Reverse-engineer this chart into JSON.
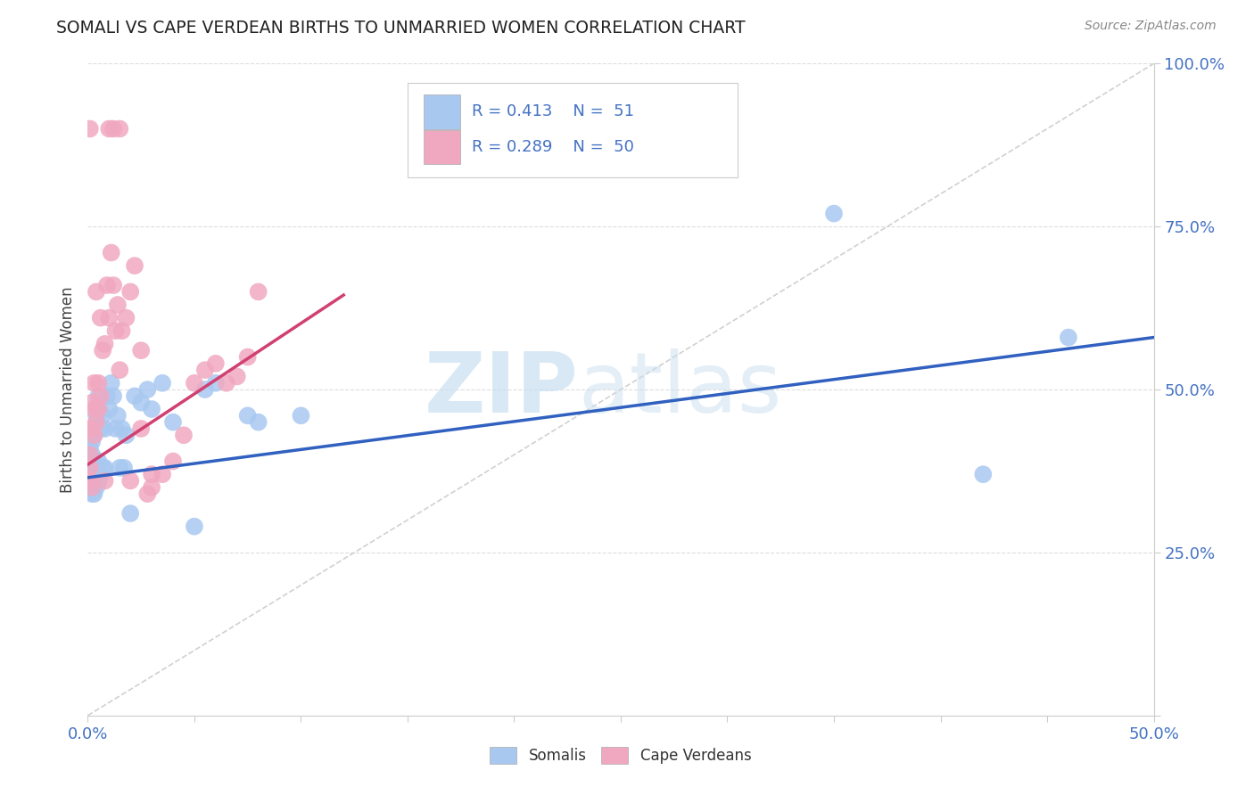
{
  "title": "SOMALI VS CAPE VERDEAN BIRTHS TO UNMARRIED WOMEN CORRELATION CHART",
  "source": "Source: ZipAtlas.com",
  "ylabel": "Births to Unmarried Women",
  "xlim": [
    0.0,
    0.5
  ],
  "ylim": [
    0.0,
    1.0
  ],
  "somali_color": "#a8c8f0",
  "cape_verdean_color": "#f0a8c0",
  "somali_line_color": "#3060c0",
  "cape_verdean_line_color": "#d04070",
  "ref_line_color": "#cccccc",
  "watermark_zip_color": "#c8dff0",
  "watermark_atlas_color": "#c8dff0",
  "legend_R_somali": "0.413",
  "legend_N_somali": "51",
  "legend_R_cape": "0.289",
  "legend_N_cape": "50",
  "somali_line_x0": 0.0,
  "somali_line_y0": 0.365,
  "somali_line_x1": 0.5,
  "somali_line_y1": 0.58,
  "cape_line_x0": 0.0,
  "cape_line_y0": 0.385,
  "cape_line_x1": 0.12,
  "cape_line_y1": 0.645,
  "background_color": "#ffffff",
  "grid_color": "#dddddd",
  "tick_label_color": "#4472c4",
  "somali_x": [
    0.001,
    0.001,
    0.001,
    0.001,
    0.002,
    0.002,
    0.002,
    0.002,
    0.002,
    0.003,
    0.003,
    0.003,
    0.003,
    0.004,
    0.004,
    0.004,
    0.005,
    0.005,
    0.005,
    0.006,
    0.006,
    0.007,
    0.007,
    0.008,
    0.008,
    0.009,
    0.01,
    0.011,
    0.012,
    0.013,
    0.014,
    0.015,
    0.016,
    0.017,
    0.018,
    0.02,
    0.022,
    0.025,
    0.028,
    0.03,
    0.035,
    0.04,
    0.055,
    0.06,
    0.075,
    0.08,
    0.1,
    0.35,
    0.42,
    0.46,
    0.05
  ],
  "somali_y": [
    0.36,
    0.38,
    0.4,
    0.41,
    0.34,
    0.36,
    0.38,
    0.4,
    0.42,
    0.34,
    0.36,
    0.39,
    0.43,
    0.35,
    0.37,
    0.46,
    0.36,
    0.39,
    0.49,
    0.37,
    0.44,
    0.38,
    0.46,
    0.38,
    0.44,
    0.49,
    0.47,
    0.51,
    0.49,
    0.44,
    0.46,
    0.38,
    0.44,
    0.38,
    0.43,
    0.31,
    0.49,
    0.48,
    0.5,
    0.47,
    0.51,
    0.45,
    0.5,
    0.51,
    0.46,
    0.45,
    0.46,
    0.77,
    0.37,
    0.58,
    0.29
  ],
  "cape_x": [
    0.001,
    0.001,
    0.001,
    0.001,
    0.001,
    0.002,
    0.002,
    0.002,
    0.003,
    0.003,
    0.003,
    0.004,
    0.004,
    0.005,
    0.005,
    0.006,
    0.006,
    0.007,
    0.008,
    0.009,
    0.01,
    0.011,
    0.012,
    0.013,
    0.014,
    0.015,
    0.016,
    0.018,
    0.02,
    0.022,
    0.025,
    0.028,
    0.03,
    0.035,
    0.04,
    0.045,
    0.05,
    0.055,
    0.06,
    0.065,
    0.07,
    0.075,
    0.08,
    0.02,
    0.025,
    0.03,
    0.01,
    0.012,
    0.015,
    0.008
  ],
  "cape_y": [
    0.36,
    0.38,
    0.4,
    0.44,
    0.9,
    0.35,
    0.44,
    0.48,
    0.43,
    0.47,
    0.51,
    0.45,
    0.65,
    0.47,
    0.51,
    0.49,
    0.61,
    0.56,
    0.57,
    0.66,
    0.61,
    0.71,
    0.66,
    0.59,
    0.63,
    0.53,
    0.59,
    0.61,
    0.65,
    0.69,
    0.56,
    0.34,
    0.37,
    0.37,
    0.39,
    0.43,
    0.51,
    0.53,
    0.54,
    0.51,
    0.52,
    0.55,
    0.65,
    0.36,
    0.44,
    0.35,
    0.9,
    0.9,
    0.9,
    0.36
  ]
}
